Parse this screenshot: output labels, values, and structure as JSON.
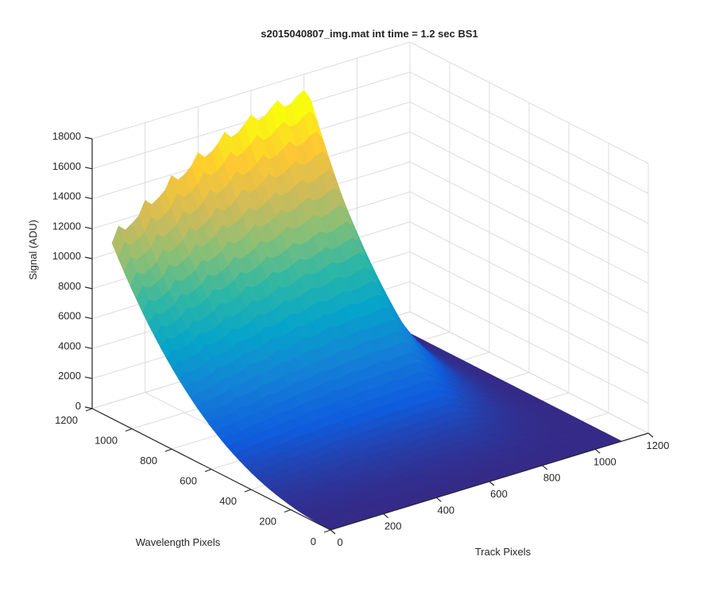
{
  "chart_data": {
    "type": "surface",
    "title": "s2015040807_img.mat int time = 1.2 sec   BS1",
    "xlabel": "Track Pixels",
    "ylabel": "Wavelength Pixels",
    "zlabel": "Signal (ADU)",
    "xlim": [
      0,
      1200
    ],
    "ylim": [
      0,
      1200
    ],
    "zlim": [
      0,
      18000
    ],
    "xticks": [
      "0",
      "200",
      "400",
      "600",
      "800",
      "1000",
      "1200"
    ],
    "yticks": [
      "0",
      "200",
      "400",
      "600",
      "800",
      "1000",
      "1200"
    ],
    "zticks": [
      "0",
      "2000",
      "4000",
      "6000",
      "8000",
      "10000",
      "12000",
      "14000",
      "16000",
      "18000"
    ],
    "grid": true,
    "colormap": [
      "#352a87",
      "#0f5cdd",
      "#1481d6",
      "#06a4ca",
      "#2eb7a4",
      "#87bf77",
      "#d1bb59",
      "#fec832",
      "#f9fb0e"
    ],
    "surface": {
      "x_extent": [
        0,
        1100
      ],
      "wavelength_extent": [
        0,
        1100
      ],
      "peak_signal_at_wavelength_max": 11000,
      "max_signal": 17000,
      "profile_along_track": "rises from 11000 at track 0 to about 15000-17000 near track 700-750, then falls to near 0 at track 1100",
      "profile_along_wavelength": "signal increases roughly quadratically with wavelength pixel, near 0 at wavelength 0"
    }
  }
}
